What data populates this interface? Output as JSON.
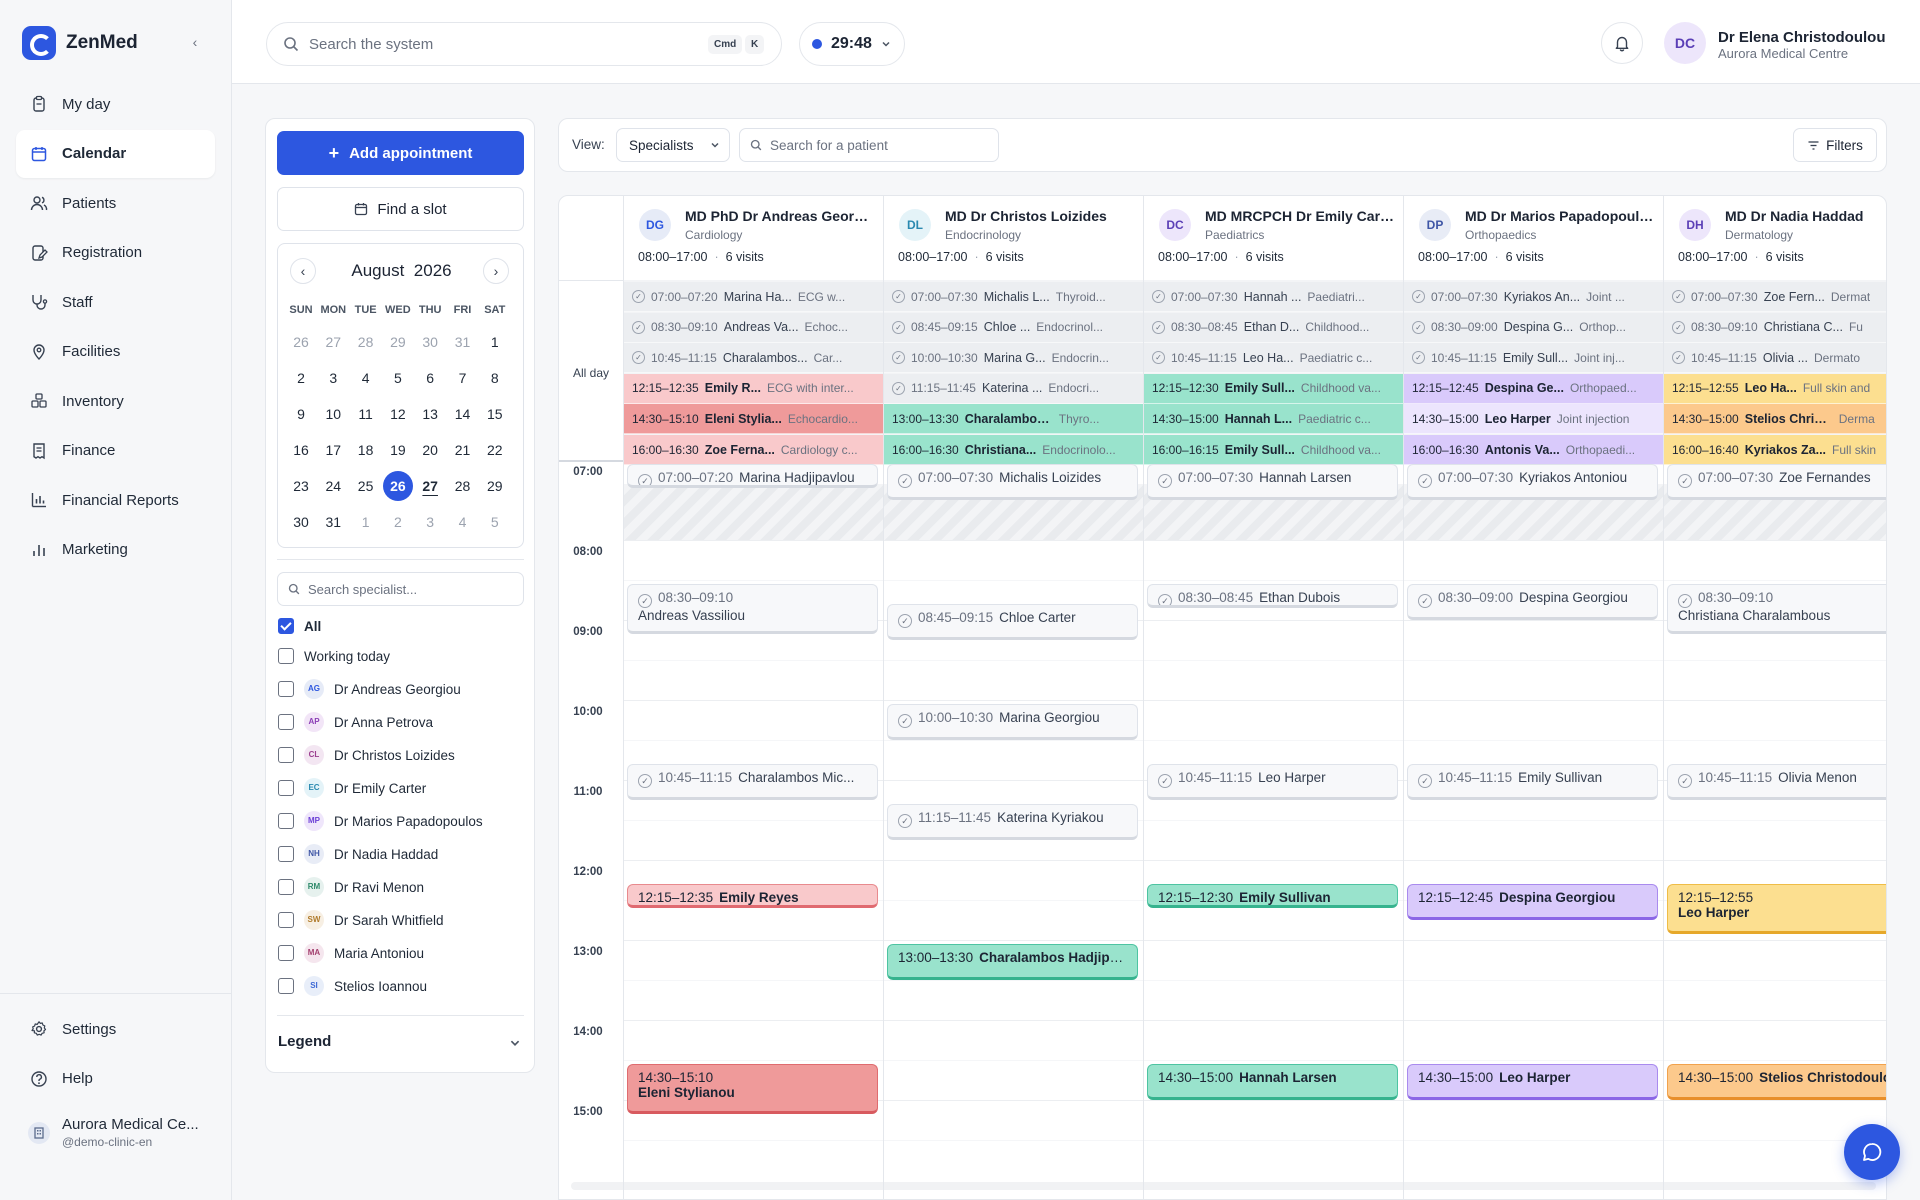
{
  "app": {
    "name": "ZenMed"
  },
  "colors": {
    "accent": "#2d57e0"
  },
  "sidebar": {
    "items": [
      {
        "label": "My day",
        "icon": "clipboard-icon"
      },
      {
        "label": "Calendar",
        "icon": "calendar-icon",
        "active": true
      },
      {
        "label": "Patients",
        "icon": "users-icon"
      },
      {
        "label": "Registration",
        "icon": "registration-icon"
      },
      {
        "label": "Staff",
        "icon": "stethoscope-icon"
      },
      {
        "label": "Facilities",
        "icon": "location-pin-icon"
      },
      {
        "label": "Inventory",
        "icon": "boxes-icon"
      },
      {
        "label": "Finance",
        "icon": "receipt-icon"
      },
      {
        "label": "Financial Reports",
        "icon": "bar-chart-icon"
      },
      {
        "label": "Marketing",
        "icon": "signal-icon"
      }
    ],
    "bottom": [
      {
        "label": "Settings",
        "icon": "gear-icon"
      },
      {
        "label": "Help",
        "icon": "help-icon"
      }
    ],
    "clinic": {
      "name": "Aurora Medical Ce...",
      "handle": "@demo-clinic-en"
    }
  },
  "topbar": {
    "search_placeholder": "Search the system",
    "shortcut": [
      "Cmd",
      "K"
    ],
    "timer": "29:48",
    "user": {
      "initials": "DC",
      "name": "Dr Elena Christodoulou",
      "org": "Aurora Medical Centre"
    }
  },
  "left": {
    "add_label": "Add appointment",
    "find_label": "Find a slot",
    "calendar": {
      "month": "August",
      "year": "2026",
      "dow": [
        "SUN",
        "MON",
        "TUE",
        "WED",
        "THU",
        "FRI",
        "SAT"
      ],
      "weeks": [
        [
          "26",
          "27",
          "28",
          "29",
          "30",
          "31",
          "1"
        ],
        [
          "2",
          "3",
          "4",
          "5",
          "6",
          "7",
          "8"
        ],
        [
          "9",
          "10",
          "11",
          "12",
          "13",
          "14",
          "15"
        ],
        [
          "16",
          "17",
          "18",
          "19",
          "20",
          "21",
          "22"
        ],
        [
          "23",
          "24",
          "25",
          "26",
          "27",
          "28",
          "29"
        ],
        [
          "30",
          "31",
          "1",
          "2",
          "3",
          "4",
          "5"
        ]
      ],
      "selected": "26",
      "today": "27"
    },
    "specialist_search": "Search specialist...",
    "filters": [
      {
        "label": "All",
        "checked": true
      },
      {
        "label": "Working today",
        "checked": false
      }
    ],
    "specialists": [
      {
        "initials": "AG",
        "name": "Dr Andreas Georgiou",
        "bg": "#e6ebf7",
        "fg": "#2d57e0"
      },
      {
        "initials": "AP",
        "name": "Dr Anna Petrova",
        "bg": "#f2e5f7",
        "fg": "#8b3fb6"
      },
      {
        "initials": "CL",
        "name": "Dr Christos Loizides",
        "bg": "#f3e6f2",
        "fg": "#9b3f8f"
      },
      {
        "initials": "EC",
        "name": "Dr Emily Carter",
        "bg": "#e4f3f8",
        "fg": "#2a89b0"
      },
      {
        "initials": "MP",
        "name": "Dr Marios Papadopoulos",
        "bg": "#efe6fb",
        "fg": "#6b3fd6"
      },
      {
        "initials": "NH",
        "name": "Dr Nadia Haddad",
        "bg": "#e8ecf6",
        "fg": "#3f56a6"
      },
      {
        "initials": "RM",
        "name": "Dr Ravi Menon",
        "bg": "#e6f1ee",
        "fg": "#2f8a6b"
      },
      {
        "initials": "SW",
        "name": "Dr Sarah Whitfield",
        "bg": "#f7efe3",
        "fg": "#b07a2a"
      },
      {
        "initials": "MA",
        "name": "Maria Antoniou",
        "bg": "#f5e6ee",
        "fg": "#a33f6e"
      },
      {
        "initials": "SI",
        "name": "Stelios Ioannou",
        "bg": "#e8eef9",
        "fg": "#3f6ad6"
      }
    ],
    "legend": "Legend"
  },
  "viewbar": {
    "label": "View:",
    "value": "Specialists",
    "patient_search": "Search for a patient",
    "filters": "Filters"
  },
  "grid": {
    "allday_label": "All day",
    "times": [
      "07:00",
      "08:00",
      "09:00",
      "10:00",
      "11:00",
      "12:00",
      "13:00",
      "14:00",
      "15:00"
    ],
    "columns": [
      {
        "initials": "DG",
        "avbg": "#e6ebf7",
        "avfg": "#2d57e0",
        "name": "MD PhD Dr Andreas Georgiou",
        "spec": "Cardiology",
        "hours": "08:00–17:00",
        "visits": "6 visits",
        "allday": [
          {
            "t": "07:00–07:20",
            "n": "Marina Ha...",
            "d": "ECG w...",
            "c": "gray"
          },
          {
            "t": "08:30–09:10",
            "n": "Andreas Va...",
            "d": "Echoc...",
            "c": "gray"
          },
          {
            "t": "10:45–11:15",
            "n": "Charalambos...",
            "d": "Car...",
            "c": "gray"
          },
          {
            "t": "12:15–12:35",
            "n": "Emily R...",
            "d": "ECG with inter...",
            "c": "#f9c9cb"
          },
          {
            "t": "14:30–15:10",
            "n": "Eleni Stylia...",
            "d": "Echocardio...",
            "c": "#ef9a9a"
          },
          {
            "t": "16:00–16:30",
            "n": "Zoe Ferna...",
            "d": "Cardiology c...",
            "c": "#f9c9cb"
          }
        ],
        "events": [
          {
            "t": "07:00–07:20",
            "n": "Marina Hadjipavlou",
            "start": 7.0,
            "end": 7.33,
            "c": "gray"
          },
          {
            "t": "08:30–09:10",
            "n": "Andreas Vassiliou",
            "start": 8.5,
            "end": 9.17,
            "c": "gray",
            "two": true
          },
          {
            "t": "10:45–11:15",
            "n": "Charalambos Mic...",
            "start": 10.75,
            "end": 11.25,
            "c": "gray"
          },
          {
            "t": "12:15–12:35",
            "n": "Emily Reyes",
            "start": 12.25,
            "end": 12.58,
            "c": "red"
          },
          {
            "t": "14:30–15:10",
            "n": "Eleni Stylianou",
            "start": 14.5,
            "end": 15.17,
            "c": "red2",
            "two": true
          }
        ]
      },
      {
        "initials": "DL",
        "avbg": "#e4f3f8",
        "avfg": "#2a89b0",
        "name": "MD Dr Christos Loizides",
        "spec": "Endocrinology",
        "hours": "08:00–17:00",
        "visits": "6 visits",
        "allday": [
          {
            "t": "07:00–07:30",
            "n": "Michalis L...",
            "d": "Thyroid...",
            "c": "gray"
          },
          {
            "t": "08:45–09:15",
            "n": "Chloe ...",
            "d": "Endocrinol...",
            "c": "gray"
          },
          {
            "t": "10:00–10:30",
            "n": "Marina G...",
            "d": "Endocrin...",
            "c": "gray"
          },
          {
            "t": "11:15–11:45",
            "n": "Katerina ...",
            "d": "Endocri...",
            "c": "gray"
          },
          {
            "t": "13:00–13:30",
            "n": "Charalambos H...",
            "d": "Thyro...",
            "c": "#99e3cc"
          },
          {
            "t": "16:00–16:30",
            "n": "Christiana...",
            "d": "Endocrinolo...",
            "c": "#99e3cc"
          }
        ],
        "events": [
          {
            "t": "07:00–07:30",
            "n": "Michalis Loizides",
            "start": 7.0,
            "end": 7.5,
            "c": "gray"
          },
          {
            "t": "08:45–09:15",
            "n": "Chloe Carter",
            "start": 8.75,
            "end": 9.25,
            "c": "gray"
          },
          {
            "t": "10:00–10:30",
            "n": "Marina Georgiou",
            "start": 10.0,
            "end": 10.5,
            "c": "gray"
          },
          {
            "t": "11:15–11:45",
            "n": "Katerina Kyriakou",
            "start": 11.25,
            "end": 11.75,
            "c": "gray"
          },
          {
            "t": "13:00–13:30",
            "n": "Charalambos Hadjipa...",
            "start": 13.0,
            "end": 13.5,
            "c": "teal"
          }
        ]
      },
      {
        "initials": "DC",
        "avbg": "#ede6fb",
        "avfg": "#5b3fb6",
        "name": "MD MRCPCH Dr Emily Carter",
        "spec": "Paediatrics",
        "hours": "08:00–17:00",
        "visits": "6 visits",
        "allday": [
          {
            "t": "07:00–07:30",
            "n": "Hannah ...",
            "d": "Paediatri...",
            "c": "gray"
          },
          {
            "t": "08:30–08:45",
            "n": "Ethan D...",
            "d": "Childhood...",
            "c": "gray"
          },
          {
            "t": "10:45–11:15",
            "n": "Leo Ha...",
            "d": "Paediatric c...",
            "c": "gray"
          },
          {
            "t": "12:15–12:30",
            "n": "Emily Sull...",
            "d": "Childhood va...",
            "c": "#99e3cc"
          },
          {
            "t": "14:30–15:00",
            "n": "Hannah L...",
            "d": "Paediatric c...",
            "c": "#99e3cc"
          },
          {
            "t": "16:00–16:15",
            "n": "Emily Sull...",
            "d": "Childhood va...",
            "c": "#99e3cc"
          }
        ],
        "events": [
          {
            "t": "07:00–07:30",
            "n": "Hannah Larsen",
            "start": 7.0,
            "end": 7.5,
            "c": "gray"
          },
          {
            "t": "08:30–08:45",
            "n": "Ethan Dubois",
            "start": 8.5,
            "end": 8.75,
            "c": "gray"
          },
          {
            "t": "10:45–11:15",
            "n": "Leo Harper",
            "start": 10.75,
            "end": 11.25,
            "c": "gray"
          },
          {
            "t": "12:15–12:30",
            "n": "Emily Sullivan",
            "start": 12.25,
            "end": 12.5,
            "c": "teal"
          },
          {
            "t": "14:30–15:00",
            "n": "Hannah Larsen",
            "start": 14.5,
            "end": 15.0,
            "c": "teal"
          }
        ]
      },
      {
        "initials": "DP",
        "avbg": "#e8ecf6",
        "avfg": "#3f56a6",
        "name": "MD Dr Marios Papadopoulos",
        "spec": "Orthopaedics",
        "hours": "08:00–17:00",
        "visits": "6 visits",
        "allday": [
          {
            "t": "07:00–07:30",
            "n": "Kyriakos An...",
            "d": "Joint ...",
            "c": "gray"
          },
          {
            "t": "08:30–09:00",
            "n": "Despina G...",
            "d": "Orthop...",
            "c": "gray"
          },
          {
            "t": "10:45–11:15",
            "n": "Emily Sull...",
            "d": "Joint inj...",
            "c": "gray"
          },
          {
            "t": "12:15–12:45",
            "n": "Despina Ge...",
            "d": "Orthopaed...",
            "c": "#d9cafb"
          },
          {
            "t": "14:30–15:00",
            "n": "Leo Harper",
            "d": "Joint injection",
            "c": "#ece5fd"
          },
          {
            "t": "16:00–16:30",
            "n": "Antonis Va...",
            "d": "Orthopaedi...",
            "c": "#d9cafb"
          }
        ],
        "events": [
          {
            "t": "07:00–07:30",
            "n": "Kyriakos Antoniou",
            "start": 7.0,
            "end": 7.5,
            "c": "gray"
          },
          {
            "t": "08:30–09:00",
            "n": "Despina Georgiou",
            "start": 8.5,
            "end": 9.0,
            "c": "gray"
          },
          {
            "t": "10:45–11:15",
            "n": "Emily Sullivan",
            "start": 10.75,
            "end": 11.25,
            "c": "gray"
          },
          {
            "t": "12:15–12:45",
            "n": "Despina Georgiou",
            "start": 12.25,
            "end": 12.75,
            "c": "purple"
          },
          {
            "t": "14:30–15:00",
            "n": "Leo Harper",
            "start": 14.5,
            "end": 15.0,
            "c": "purple"
          }
        ]
      },
      {
        "initials": "DH",
        "avbg": "#ede6fb",
        "avfg": "#5b3fb6",
        "name": "MD Dr Nadia Haddad",
        "spec": "Dermatology",
        "hours": "08:00–17:00",
        "visits": "6 visits",
        "allday": [
          {
            "t": "07:00–07:30",
            "n": "Zoe Fern...",
            "d": "Dermat",
            "c": "gray"
          },
          {
            "t": "08:30–09:10",
            "n": "Christiana C...",
            "d": "Fu",
            "c": "gray"
          },
          {
            "t": "10:45–11:15",
            "n": "Olivia ...",
            "d": "Dermato",
            "c": "gray"
          },
          {
            "t": "12:15–12:55",
            "n": "Leo Ha...",
            "d": "Full skin and",
            "c": "#fcdf90"
          },
          {
            "t": "14:30–15:00",
            "n": "Stelios Christ...",
            "d": "Derma",
            "c": "#fcc98c"
          },
          {
            "t": "16:00–16:40",
            "n": "Kyriakos Za...",
            "d": "Full skin",
            "c": "#fcdf90"
          }
        ],
        "events": [
          {
            "t": "07:00–07:30",
            "n": "Zoe Fernandes",
            "start": 7.0,
            "end": 7.5,
            "c": "gray"
          },
          {
            "t": "08:30–09:10",
            "n": "Christiana Charalambous",
            "start": 8.5,
            "end": 9.17,
            "c": "gray",
            "two": true
          },
          {
            "t": "10:45–11:15",
            "n": "Olivia Menon",
            "start": 10.75,
            "end": 11.25,
            "c": "gray"
          },
          {
            "t": "12:15–12:55",
            "n": "Leo Harper",
            "start": 12.25,
            "end": 12.92,
            "c": "yellow",
            "two": true
          },
          {
            "t": "14:30–15:00",
            "n": "Stelios Christodoulou",
            "start": 14.5,
            "end": 15.0,
            "c": "orange"
          }
        ]
      }
    ]
  }
}
